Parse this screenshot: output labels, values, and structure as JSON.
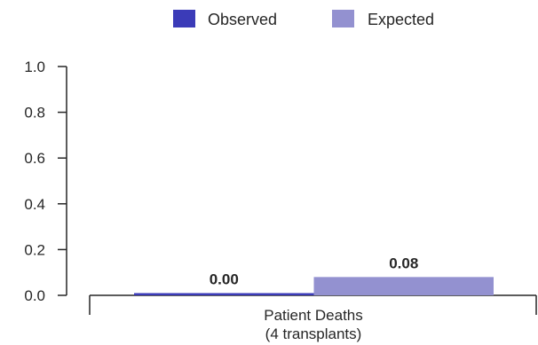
{
  "chart_data": {
    "type": "bar",
    "categories": [
      "Patient Deaths\n(4 transplants)"
    ],
    "series": [
      {
        "name": "Observed",
        "values": [
          0.0
        ],
        "color": "#3b3bb8",
        "value_labels": [
          "0.00"
        ]
      },
      {
        "name": "Expected",
        "values": [
          0.08
        ],
        "color": "#9391d0",
        "value_labels": [
          "0.08"
        ]
      }
    ],
    "ylim": [
      0,
      1.0
    ],
    "yticks": [
      0.0,
      0.2,
      0.4,
      0.6,
      0.8,
      1.0
    ],
    "ytick_labels": [
      "0.0",
      "0.2",
      "0.4",
      "0.6",
      "0.8",
      "1.0"
    ],
    "legend_position": "top-center",
    "grid": false
  }
}
